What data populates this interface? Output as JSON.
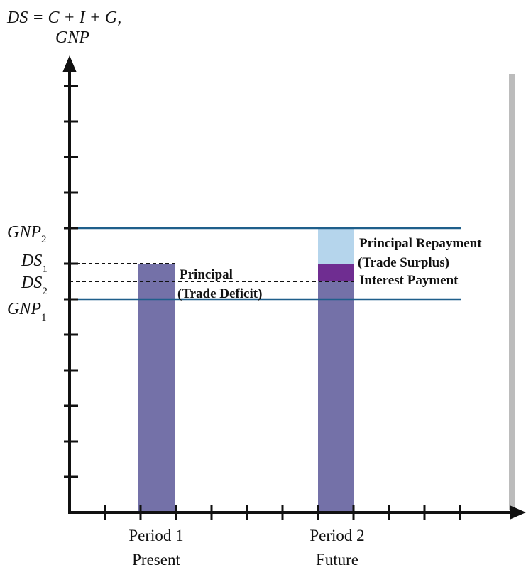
{
  "chart_data": {
    "type": "bar",
    "ylabel": {
      "line1": "DS = C + I + G,",
      "line2": "GNP"
    },
    "categories": [
      {
        "line1": "Period 1",
        "line2": "Present"
      },
      {
        "line1": "Period 2",
        "line2": "Future"
      }
    ],
    "y_levels": {
      "GNP2": 8,
      "DS1": 7,
      "DS2": 6.5,
      "GNP1": 6
    },
    "ylim": [
      0,
      12
    ],
    "y_tick_labels": [
      {
        "key": "GNP2",
        "base": "GNP",
        "sub": "2"
      },
      {
        "key": "DS1",
        "base": "DS",
        "sub": "1"
      },
      {
        "key": "DS2",
        "base": "DS",
        "sub": "2"
      },
      {
        "key": "GNP1",
        "base": "GNP",
        "sub": "1"
      }
    ],
    "bars": {
      "period1": {
        "value": 7
      },
      "period2_base": {
        "value": 6.5
      },
      "period2_interest": {
        "from": 6.5,
        "to": 7
      },
      "period2_principal": {
        "from": 7,
        "to": 8
      }
    },
    "annotations": {
      "principal_line1": "Principal",
      "principal_line2": "(Trade Deficit)",
      "repayment_line1": "Principal Repayment",
      "repayment_line2": "(Trade Surplus)",
      "interest": "Interest Payment"
    },
    "colors": {
      "bar": "#7471a8",
      "interest": "#6f2d91",
      "repayment": "#b5d5ec",
      "gnp_line": "#1f5f8b",
      "axis": "#111111",
      "shadow": "#bcbcbc"
    },
    "grid": false,
    "legend": "none"
  }
}
